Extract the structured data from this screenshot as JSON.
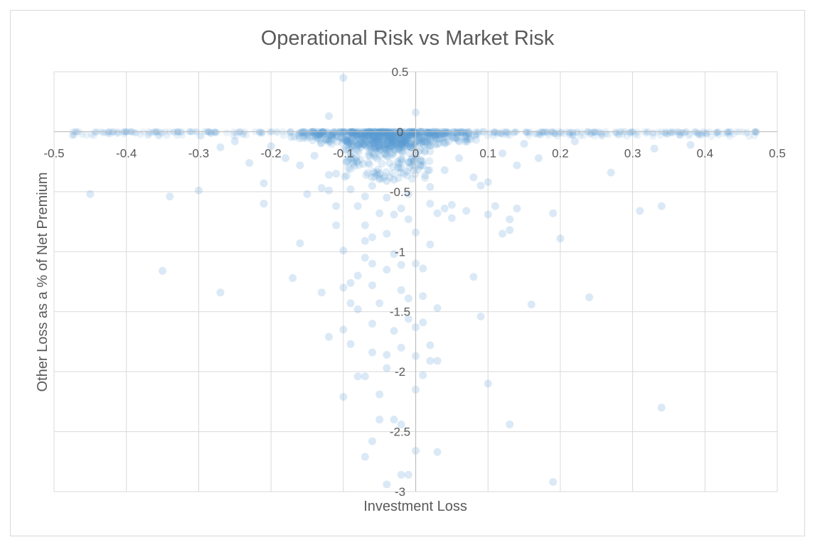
{
  "chart_data": {
    "type": "scatter",
    "title": "Operational Risk vs Market Risk",
    "xlabel": "Investment Loss",
    "ylabel": "Other Loss as a % of Net Premium",
    "xlim": [
      -0.5,
      0.5
    ],
    "ylim": [
      -3,
      0.5
    ],
    "x_ticks": [
      -0.5,
      -0.4,
      -0.3,
      -0.2,
      -0.1,
      0,
      0.1,
      0.2,
      0.3,
      0.4,
      0.5
    ],
    "x_tick_labels": [
      "-0.5",
      "-0.4",
      "-0.3",
      "-0.2",
      "-0.1",
      "0",
      "0.1",
      "0.2",
      "0.3",
      "0.4",
      "0.5"
    ],
    "y_ticks": [
      0.5,
      0,
      -0.5,
      -1,
      -1.5,
      -2,
      -2.5,
      -3
    ],
    "y_tick_labels": [
      "0.5",
      "0",
      "-0.5",
      "-1",
      "-1.5",
      "-2",
      "-2.5",
      "-3"
    ],
    "grid": true,
    "legend": "none",
    "marker_color": "#5b9bd5",
    "series": [
      {
        "points": [
          [
            -0.1,
            0.45
          ],
          [
            0.0,
            0.16
          ],
          [
            -0.12,
            0.13
          ],
          [
            -0.45,
            -0.52
          ],
          [
            -0.34,
            -0.54
          ],
          [
            -0.3,
            -0.49
          ],
          [
            -0.21,
            -0.6
          ],
          [
            -0.21,
            -0.43
          ],
          [
            -0.35,
            -1.16
          ],
          [
            -0.27,
            -1.34
          ],
          [
            -0.16,
            -0.93
          ],
          [
            -0.17,
            -1.22
          ],
          [
            -0.13,
            -1.34
          ],
          [
            -0.12,
            -0.49
          ],
          [
            -0.11,
            -0.78
          ],
          [
            -0.1,
            -0.99
          ],
          [
            -0.1,
            -1.3
          ],
          [
            -0.09,
            -1.43
          ],
          [
            -0.08,
            -0.62
          ],
          [
            -0.07,
            -0.78
          ],
          [
            -0.07,
            -0.91
          ],
          [
            -0.06,
            -1.1
          ],
          [
            -0.06,
            -1.28
          ],
          [
            -0.05,
            -0.68
          ],
          [
            -0.05,
            -1.43
          ],
          [
            -0.04,
            -0.85
          ],
          [
            -0.04,
            -1.15
          ],
          [
            -0.03,
            -0.69
          ],
          [
            -0.03,
            -1.02
          ],
          [
            -0.02,
            -1.11
          ],
          [
            -0.02,
            -1.32
          ],
          [
            -0.01,
            -0.73
          ],
          [
            -0.01,
            -1.39
          ],
          [
            0.0,
            -0.84
          ],
          [
            0.0,
            -1.1
          ],
          [
            0.01,
            -1.14
          ],
          [
            0.01,
            -1.37
          ],
          [
            0.02,
            -0.6
          ],
          [
            0.02,
            -0.94
          ],
          [
            0.03,
            -0.68
          ],
          [
            0.03,
            -1.47
          ],
          [
            0.04,
            -0.64
          ],
          [
            0.05,
            -0.61
          ],
          [
            0.07,
            -0.66
          ],
          [
            0.08,
            -1.21
          ],
          [
            0.09,
            -1.54
          ],
          [
            0.1,
            -0.69
          ],
          [
            0.1,
            -0.42
          ],
          [
            0.11,
            -0.62
          ],
          [
            0.12,
            -0.85
          ],
          [
            0.13,
            -0.73
          ],
          [
            0.13,
            -0.82
          ],
          [
            0.14,
            -0.64
          ],
          [
            0.16,
            -1.44
          ],
          [
            0.19,
            -0.68
          ],
          [
            0.2,
            -0.89
          ],
          [
            0.24,
            -1.38
          ],
          [
            0.27,
            -0.34
          ],
          [
            0.31,
            -0.66
          ],
          [
            0.34,
            -0.62
          ],
          [
            0.33,
            -0.14
          ],
          [
            0.38,
            -0.11
          ],
          [
            -0.12,
            -1.71
          ],
          [
            -0.1,
            -1.65
          ],
          [
            -0.1,
            -2.21
          ],
          [
            -0.09,
            -1.77
          ],
          [
            -0.08,
            -2.04
          ],
          [
            -0.08,
            -1.48
          ],
          [
            -0.07,
            -2.04
          ],
          [
            -0.07,
            -2.71
          ],
          [
            -0.06,
            -1.84
          ],
          [
            -0.06,
            -1.6
          ],
          [
            -0.05,
            -2.19
          ],
          [
            -0.05,
            -2.4
          ],
          [
            -0.04,
            -1.97
          ],
          [
            -0.04,
            -1.86
          ],
          [
            -0.03,
            -1.66
          ],
          [
            -0.03,
            -2.4
          ],
          [
            -0.02,
            -1.8
          ],
          [
            -0.02,
            -2.86
          ],
          [
            -0.02,
            -2.44
          ],
          [
            -0.01,
            -1.56
          ],
          [
            -0.01,
            -2.86
          ],
          [
            0.0,
            -2.15
          ],
          [
            0.0,
            -1.87
          ],
          [
            0.0,
            -2.66
          ],
          [
            0.01,
            -2.03
          ],
          [
            0.01,
            -1.59
          ],
          [
            0.02,
            -1.78
          ],
          [
            0.02,
            -1.91
          ],
          [
            0.03,
            -1.91
          ],
          [
            0.03,
            -2.67
          ],
          [
            0.1,
            -2.1
          ],
          [
            0.13,
            -2.44
          ],
          [
            0.19,
            -2.92
          ],
          [
            0.34,
            -2.3
          ],
          [
            -0.04,
            -2.94
          ],
          [
            -0.06,
            -2.58
          ],
          [
            0.0,
            -1.63
          ],
          [
            -0.09,
            -1.26
          ],
          [
            -0.08,
            -1.2
          ],
          [
            -0.07,
            -1.05
          ],
          [
            -0.11,
            -0.35
          ],
          [
            -0.09,
            -0.48
          ],
          [
            -0.06,
            -0.45
          ],
          [
            -0.05,
            -0.35
          ],
          [
            -0.04,
            -0.55
          ],
          [
            -0.03,
            -0.4
          ],
          [
            -0.02,
            -0.3
          ],
          [
            -0.01,
            -0.52
          ],
          [
            0.01,
            -0.28
          ],
          [
            0.02,
            -0.46
          ],
          [
            0.04,
            -0.32
          ],
          [
            0.06,
            -0.22
          ],
          [
            0.08,
            -0.38
          ],
          [
            0.12,
            -0.18
          ],
          [
            0.14,
            -0.28
          ],
          [
            -0.14,
            -0.2
          ],
          [
            -0.16,
            -0.28
          ],
          [
            -0.18,
            -0.22
          ],
          [
            -0.2,
            -0.12
          ],
          [
            -0.23,
            -0.26
          ],
          [
            -0.27,
            -0.13
          ],
          [
            -0.25,
            -0.08
          ],
          [
            0.15,
            -0.1
          ],
          [
            0.17,
            -0.22
          ],
          [
            0.22,
            -0.08
          ],
          [
            -0.13,
            -0.47
          ],
          [
            -0.11,
            -0.62
          ],
          [
            -0.12,
            -0.36
          ],
          [
            -0.15,
            -0.52
          ],
          [
            0.09,
            -0.45
          ],
          [
            0.05,
            -0.72
          ],
          [
            -0.02,
            -0.64
          ],
          [
            -0.06,
            -0.88
          ],
          [
            -0.07,
            -0.54
          ],
          [
            -0.04,
            -0.41
          ]
        ]
      }
    ]
  }
}
